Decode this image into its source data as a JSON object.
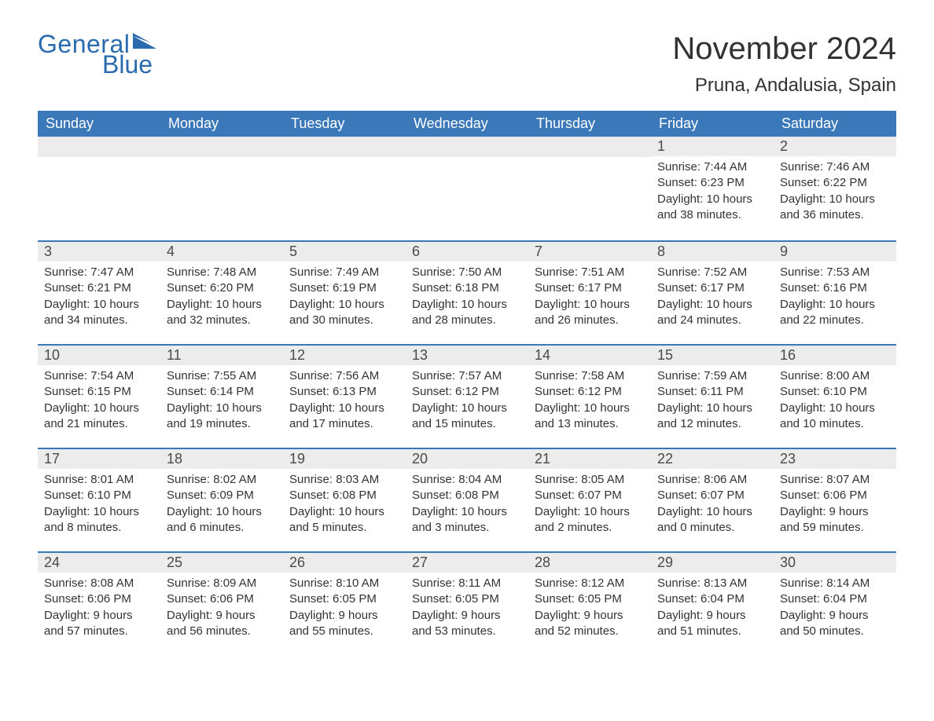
{
  "logo": {
    "text1": "General",
    "text2": "Blue",
    "color": "#2a6bb0"
  },
  "title": "November 2024",
  "location": "Pruna, Andalusia, Spain",
  "colors": {
    "header_bg": "#3b78b9",
    "header_text": "#ffffff",
    "daynum_bg": "#ececec",
    "border": "#3b78b9",
    "body_text": "#333333",
    "page_bg": "#ffffff"
  },
  "typography": {
    "title_fontsize": 40,
    "location_fontsize": 24,
    "header_fontsize": 18,
    "daynum_fontsize": 18,
    "body_fontsize": 15
  },
  "weekdays": [
    "Sunday",
    "Monday",
    "Tuesday",
    "Wednesday",
    "Thursday",
    "Friday",
    "Saturday"
  ],
  "weeks": [
    [
      null,
      null,
      null,
      null,
      null,
      {
        "n": "1",
        "sunrise": "7:44 AM",
        "sunset": "6:23 PM",
        "daylight": "10 hours and 38 minutes."
      },
      {
        "n": "2",
        "sunrise": "7:46 AM",
        "sunset": "6:22 PM",
        "daylight": "10 hours and 36 minutes."
      }
    ],
    [
      {
        "n": "3",
        "sunrise": "7:47 AM",
        "sunset": "6:21 PM",
        "daylight": "10 hours and 34 minutes."
      },
      {
        "n": "4",
        "sunrise": "7:48 AM",
        "sunset": "6:20 PM",
        "daylight": "10 hours and 32 minutes."
      },
      {
        "n": "5",
        "sunrise": "7:49 AM",
        "sunset": "6:19 PM",
        "daylight": "10 hours and 30 minutes."
      },
      {
        "n": "6",
        "sunrise": "7:50 AM",
        "sunset": "6:18 PM",
        "daylight": "10 hours and 28 minutes."
      },
      {
        "n": "7",
        "sunrise": "7:51 AM",
        "sunset": "6:17 PM",
        "daylight": "10 hours and 26 minutes."
      },
      {
        "n": "8",
        "sunrise": "7:52 AM",
        "sunset": "6:17 PM",
        "daylight": "10 hours and 24 minutes."
      },
      {
        "n": "9",
        "sunrise": "7:53 AM",
        "sunset": "6:16 PM",
        "daylight": "10 hours and 22 minutes."
      }
    ],
    [
      {
        "n": "10",
        "sunrise": "7:54 AM",
        "sunset": "6:15 PM",
        "daylight": "10 hours and 21 minutes."
      },
      {
        "n": "11",
        "sunrise": "7:55 AM",
        "sunset": "6:14 PM",
        "daylight": "10 hours and 19 minutes."
      },
      {
        "n": "12",
        "sunrise": "7:56 AM",
        "sunset": "6:13 PM",
        "daylight": "10 hours and 17 minutes."
      },
      {
        "n": "13",
        "sunrise": "7:57 AM",
        "sunset": "6:12 PM",
        "daylight": "10 hours and 15 minutes."
      },
      {
        "n": "14",
        "sunrise": "7:58 AM",
        "sunset": "6:12 PM",
        "daylight": "10 hours and 13 minutes."
      },
      {
        "n": "15",
        "sunrise": "7:59 AM",
        "sunset": "6:11 PM",
        "daylight": "10 hours and 12 minutes."
      },
      {
        "n": "16",
        "sunrise": "8:00 AM",
        "sunset": "6:10 PM",
        "daylight": "10 hours and 10 minutes."
      }
    ],
    [
      {
        "n": "17",
        "sunrise": "8:01 AM",
        "sunset": "6:10 PM",
        "daylight": "10 hours and 8 minutes."
      },
      {
        "n": "18",
        "sunrise": "8:02 AM",
        "sunset": "6:09 PM",
        "daylight": "10 hours and 6 minutes."
      },
      {
        "n": "19",
        "sunrise": "8:03 AM",
        "sunset": "6:08 PM",
        "daylight": "10 hours and 5 minutes."
      },
      {
        "n": "20",
        "sunrise": "8:04 AM",
        "sunset": "6:08 PM",
        "daylight": "10 hours and 3 minutes."
      },
      {
        "n": "21",
        "sunrise": "8:05 AM",
        "sunset": "6:07 PM",
        "daylight": "10 hours and 2 minutes."
      },
      {
        "n": "22",
        "sunrise": "8:06 AM",
        "sunset": "6:07 PM",
        "daylight": "10 hours and 0 minutes."
      },
      {
        "n": "23",
        "sunrise": "8:07 AM",
        "sunset": "6:06 PM",
        "daylight": "9 hours and 59 minutes."
      }
    ],
    [
      {
        "n": "24",
        "sunrise": "8:08 AM",
        "sunset": "6:06 PM",
        "daylight": "9 hours and 57 minutes."
      },
      {
        "n": "25",
        "sunrise": "8:09 AM",
        "sunset": "6:06 PM",
        "daylight": "9 hours and 56 minutes."
      },
      {
        "n": "26",
        "sunrise": "8:10 AM",
        "sunset": "6:05 PM",
        "daylight": "9 hours and 55 minutes."
      },
      {
        "n": "27",
        "sunrise": "8:11 AM",
        "sunset": "6:05 PM",
        "daylight": "9 hours and 53 minutes."
      },
      {
        "n": "28",
        "sunrise": "8:12 AM",
        "sunset": "6:05 PM",
        "daylight": "9 hours and 52 minutes."
      },
      {
        "n": "29",
        "sunrise": "8:13 AM",
        "sunset": "6:04 PM",
        "daylight": "9 hours and 51 minutes."
      },
      {
        "n": "30",
        "sunrise": "8:14 AM",
        "sunset": "6:04 PM",
        "daylight": "9 hours and 50 minutes."
      }
    ]
  ],
  "labels": {
    "sunrise": "Sunrise: ",
    "sunset": "Sunset: ",
    "daylight": "Daylight: "
  }
}
